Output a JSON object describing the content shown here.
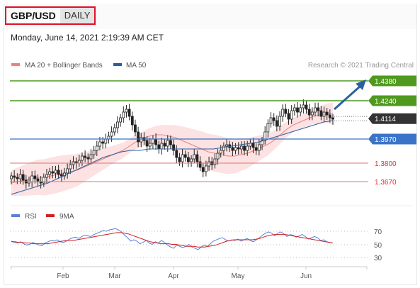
{
  "header": {
    "pair": "GBP/USD",
    "period": "DAILY"
  },
  "date_text": "Monday, June 14, 2021 2:19:39 AM CET",
  "credit": "Research © 2021 Trading Central",
  "colors": {
    "ma20": "#f08080",
    "ma50": "#2c5f9e",
    "green": "#4f9a1e",
    "blue_level": "#3a74c8",
    "red_level": "#e07070",
    "current": "#333333",
    "rsi": "#5b7fd6",
    "rsi_ma": "#d02020"
  },
  "chart_data": [
    {
      "type": "candlestick",
      "legend": [
        {
          "name": "MA 20 + Bollinger Bands"
        },
        {
          "name": "MA 50"
        }
      ],
      "legend_position": "top-left",
      "x_tick_labels": [
        "Feb",
        "Mar",
        "Apr",
        "May",
        "Jun"
      ],
      "ylim": [
        1.355,
        1.445
      ],
      "levels": [
        {
          "label": "1.4380",
          "value": 1.438,
          "kind": "resistance"
        },
        {
          "label": "1.4240",
          "value": 1.424,
          "kind": "resistance"
        },
        {
          "label": "1.4114",
          "value": 1.4114,
          "kind": "current"
        },
        {
          "label": "1.3970",
          "value": 1.397,
          "kind": "pivot"
        },
        {
          "label": "1.3800",
          "value": 1.38,
          "kind": "support"
        },
        {
          "label": "1.3670",
          "value": 1.367,
          "kind": "support"
        }
      ],
      "ohlc_daily_close_approx": [
        1.371,
        1.37,
        1.369,
        1.372,
        1.368,
        1.366,
        1.367,
        1.371,
        1.369,
        1.367,
        1.366,
        1.37,
        1.372,
        1.374,
        1.373,
        1.375,
        1.372,
        1.371,
        1.373,
        1.376,
        1.379,
        1.381,
        1.38,
        1.382,
        1.385,
        1.384,
        1.383,
        1.386,
        1.389,
        1.392,
        1.395,
        1.394,
        1.397,
        1.399,
        1.402,
        1.405,
        1.409,
        1.412,
        1.416,
        1.418,
        1.413,
        1.407,
        1.402,
        1.395,
        1.398,
        1.396,
        1.392,
        1.394,
        1.397,
        1.393,
        1.39,
        1.394,
        1.392,
        1.396,
        1.393,
        1.389,
        1.384,
        1.381,
        1.386,
        1.384,
        1.381,
        1.383,
        1.386,
        1.381,
        1.377,
        1.374,
        1.378,
        1.381,
        1.379,
        1.383,
        1.387,
        1.389,
        1.392,
        1.393,
        1.391,
        1.389,
        1.391,
        1.39,
        1.392,
        1.389,
        1.392,
        1.394,
        1.391,
        1.389,
        1.393,
        1.396,
        1.402,
        1.408,
        1.412,
        1.41,
        1.406,
        1.413,
        1.418,
        1.415,
        1.411,
        1.417,
        1.419,
        1.416,
        1.419,
        1.421,
        1.418,
        1.414,
        1.416,
        1.419,
        1.417,
        1.413,
        1.416,
        1.414,
        1.412,
        1.411
      ],
      "ma20_approx": [
        1.366,
        1.367,
        1.368,
        1.369,
        1.37,
        1.37,
        1.371,
        1.372,
        1.373,
        1.374,
        1.375,
        1.377,
        1.379,
        1.381,
        1.383,
        1.385,
        1.387,
        1.389,
        1.392,
        1.395,
        1.397,
        1.399,
        1.4,
        1.4,
        1.399,
        1.398,
        1.396,
        1.394,
        1.392,
        1.39,
        1.388,
        1.387,
        1.386,
        1.385,
        1.385,
        1.386,
        1.387,
        1.389,
        1.391,
        1.393,
        1.396,
        1.4,
        1.404,
        1.407,
        1.409,
        1.411,
        1.413,
        1.414,
        1.415,
        1.415
      ],
      "ma50_approx": [
        1.358,
        1.36,
        1.362,
        1.364,
        1.366,
        1.369,
        1.372,
        1.375,
        1.378,
        1.381,
        1.384,
        1.386,
        1.388,
        1.389,
        1.389,
        1.39,
        1.39,
        1.39,
        1.39,
        1.39,
        1.39,
        1.39,
        1.39,
        1.391,
        1.392,
        1.393,
        1.394,
        1.395,
        1.397,
        1.399,
        1.401,
        1.403,
        1.405,
        1.407,
        1.409,
        1.41
      ]
    },
    {
      "type": "line",
      "legend": [
        {
          "name": "RSI"
        },
        {
          "name": "9MA"
        }
      ],
      "y_tick_labels": [
        "70",
        "50",
        "30"
      ],
      "ylim": [
        20,
        80
      ],
      "rsi_approx": [
        55,
        53,
        52,
        54,
        51,
        49,
        50,
        53,
        51,
        49,
        48,
        52,
        54,
        56,
        55,
        57,
        54,
        53,
        55,
        58,
        60,
        61,
        59,
        62,
        64,
        63,
        62,
        65,
        67,
        69,
        71,
        70,
        72,
        73,
        74,
        72,
        69,
        64,
        60,
        55,
        57,
        55,
        51,
        53,
        56,
        52,
        50,
        54,
        52,
        56,
        53,
        49,
        46,
        44,
        49,
        47,
        45,
        47,
        50,
        46,
        44,
        42,
        46,
        49,
        47,
        51,
        55,
        57,
        59,
        60,
        57,
        55,
        57,
        56,
        58,
        55,
        57,
        59,
        56,
        54,
        57,
        60,
        64,
        67,
        69,
        67,
        63,
        67,
        69,
        66,
        62,
        65,
        64,
        61,
        63,
        65,
        62,
        58,
        60,
        62,
        60,
        56,
        57,
        54,
        53,
        52
      ],
      "ma9_approx": [
        54,
        54,
        53,
        53,
        52,
        52,
        51,
        51,
        51,
        51,
        51,
        52,
        53,
        54,
        55,
        56,
        56,
        56,
        57,
        58,
        59,
        60,
        61,
        62,
        63,
        64,
        65,
        66,
        67,
        68,
        68,
        67,
        66,
        64,
        62,
        60,
        58,
        56,
        54,
        53,
        52,
        51,
        51,
        51,
        50,
        50,
        49,
        48,
        47,
        47,
        47,
        46,
        46,
        46,
        47,
        48,
        49,
        51,
        53,
        55,
        56,
        57,
        57,
        57,
        57,
        57,
        57,
        58,
        59,
        61,
        63,
        64,
        65,
        65,
        65,
        65,
        64,
        63,
        62,
        61,
        60,
        59,
        58,
        57,
        56,
        55,
        54,
        53,
        52
      ]
    }
  ]
}
